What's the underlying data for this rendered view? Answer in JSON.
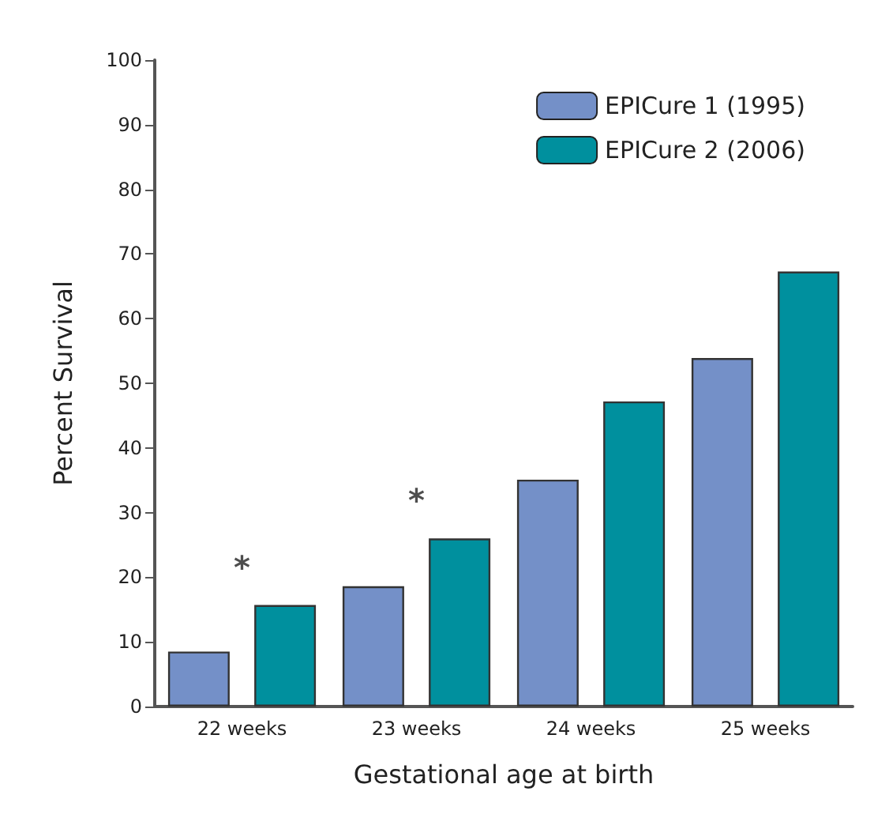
{
  "chart_data": {
    "type": "bar",
    "xlabel": "Gestational age at birth",
    "ylabel": "Percent Survival",
    "categories": [
      "22 weeks",
      "23 weeks",
      "24 weeks",
      "25 weeks"
    ],
    "series": [
      {
        "name": "EPICure 1 (1995)",
        "color": "#7490c8",
        "values": [
          8.5,
          18.6,
          35.1,
          53.9
        ]
      },
      {
        "name": "EPICure 2 (2006)",
        "color": "#00909e",
        "values": [
          15.7,
          26,
          47.2,
          67.3
        ]
      }
    ],
    "ylim": [
      0,
      100
    ],
    "yticks": [
      0,
      10,
      20,
      30,
      40,
      50,
      60,
      70,
      80,
      90,
      100
    ],
    "grid": false,
    "legend": "top right",
    "annotations": [
      "*",
      "*"
    ]
  }
}
